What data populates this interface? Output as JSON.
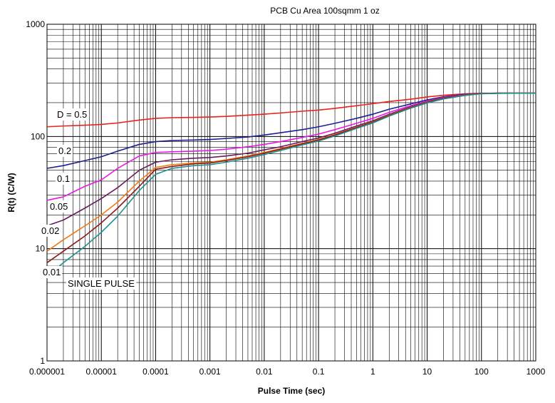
{
  "chart_data": {
    "type": "line",
    "title": "PCB Cu Area 100sqmm 1 oz",
    "xlabel": "Pulse Time (sec)",
    "ylabel": "R(t) (C/W)",
    "x_scale": "log",
    "y_scale": "log",
    "xlim": [
      1e-06,
      1000
    ],
    "ylim": [
      1,
      1000
    ],
    "x_ticks": [
      1e-06,
      1e-05,
      0.0001,
      0.001,
      0.01,
      0.1,
      1,
      10,
      100,
      1000
    ],
    "x_tick_labels": [
      "0.000001",
      "0.00001",
      "0.0001",
      "0.001",
      "0.01",
      "0.1",
      "1",
      "10",
      "100",
      "1000"
    ],
    "y_ticks": [
      1,
      10,
      100,
      1000
    ],
    "y_tick_labels": [
      "1",
      "10",
      "100",
      "1000"
    ],
    "grid": true,
    "legend": "none",
    "x": [
      1e-06,
      2e-06,
      5e-06,
      1e-05,
      2e-05,
      5e-05,
      0.0001,
      0.0002,
      0.0005,
      0.001,
      0.002,
      0.005,
      0.01,
      0.02,
      0.05,
      0.1,
      0.2,
      0.5,
      1,
      2,
      5,
      10,
      20,
      50,
      100,
      200,
      500,
      1000
    ],
    "series": [
      {
        "name": "D = 0.5",
        "label": "D = 0.5",
        "color": "#e8231c",
        "values": [
          122,
          124,
          126,
          128,
          132,
          140,
          145,
          147,
          148,
          149,
          151,
          155,
          158,
          162,
          168,
          172,
          178,
          188,
          196,
          205,
          215,
          225,
          233,
          240,
          243,
          243,
          243,
          243
        ]
      },
      {
        "name": "0.2",
        "label": "0.2",
        "color": "#1f1f8f",
        "values": [
          52,
          55,
          61,
          66,
          74,
          85,
          90,
          92,
          93,
          94,
          96,
          99,
          103,
          108,
          115,
          122,
          131,
          145,
          158,
          175,
          195,
          212,
          226,
          238,
          242,
          243,
          243,
          243
        ]
      },
      {
        "name": "0.1",
        "label": "0.1",
        "color": "#e619e6",
        "values": [
          27,
          29,
          36,
          41,
          52,
          67,
          72,
          73,
          74,
          75,
          77,
          81,
          85,
          90,
          98,
          105,
          115,
          131,
          145,
          164,
          188,
          207,
          223,
          236,
          241,
          243,
          243,
          243
        ]
      },
      {
        "name": "0.05",
        "label": "0.05",
        "color": "#6b1a5e",
        "values": [
          16,
          18,
          23,
          28,
          35,
          50,
          59,
          62,
          64,
          65,
          67,
          71,
          76,
          81,
          90,
          97,
          107,
          124,
          138,
          158,
          184,
          204,
          221,
          235,
          241,
          243,
          243,
          243
        ]
      },
      {
        "name": "0.02",
        "label": "0.02",
        "color": "#ef7b12",
        "values": [
          9.5,
          12,
          16,
          20,
          26,
          40,
          53,
          56,
          58,
          59,
          62,
          67,
          72,
          78,
          87,
          94,
          104,
          121,
          135,
          155,
          182,
          202,
          219,
          234,
          241,
          243,
          243,
          243
        ]
      },
      {
        "name": "0.01",
        "label": "0.01",
        "color": "#8c1a1a",
        "values": [
          7.5,
          9.5,
          13,
          17,
          23,
          36,
          51,
          54,
          57,
          58,
          61,
          66,
          71,
          77,
          86,
          93,
          103,
          120,
          134,
          154,
          181,
          201,
          218,
          233,
          241,
          243,
          243,
          243
        ]
      },
      {
        "name": "SINGLE PULSE",
        "label": "SINGLE PULSE",
        "color": "#1f8f8f",
        "values": [
          5.7,
          7.5,
          10.5,
          14,
          19.5,
          33,
          46,
          52,
          55,
          56,
          59,
          64,
          69,
          75,
          84,
          91,
          101,
          118,
          132,
          152,
          179,
          199,
          216,
          232,
          240,
          242,
          243,
          243
        ]
      }
    ]
  }
}
